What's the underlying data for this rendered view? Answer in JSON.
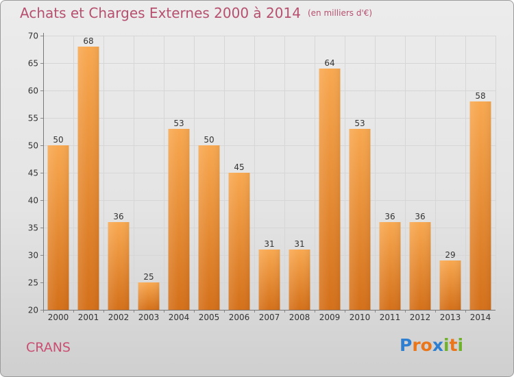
{
  "header": {
    "title": "Achats et Charges Externes 2000 à 2014",
    "subtitle": "(en milliers d'€)"
  },
  "footer": {
    "town": "CRANS",
    "logo_letters": [
      "P",
      "r",
      "o",
      "x",
      "i",
      "t",
      "i"
    ],
    "logo_colors": [
      "#2f7fd0",
      "#e9761a",
      "#e9761a",
      "#2f7fd0",
      "#6fb12c",
      "#e9761a",
      "#6fb12c"
    ]
  },
  "colors": {
    "bar_top": "#f8a850",
    "bar_bottom": "#d4701a",
    "title": "#b5506f",
    "axis_text": "#333333"
  },
  "chart_data": {
    "type": "bar",
    "categories": [
      "2000",
      "2001",
      "2002",
      "2003",
      "2004",
      "2005",
      "2006",
      "2007",
      "2008",
      "2009",
      "2010",
      "2011",
      "2012",
      "2013",
      "2014"
    ],
    "values": [
      50,
      68,
      36,
      25,
      53,
      50,
      45,
      31,
      31,
      64,
      53,
      36,
      36,
      29,
      58
    ],
    "ylim": [
      20,
      70
    ],
    "yticks": [
      20,
      25,
      30,
      35,
      40,
      45,
      50,
      55,
      60,
      65,
      70
    ],
    "grid": true,
    "data_labels": true,
    "xlabel": "",
    "ylabel": ""
  }
}
